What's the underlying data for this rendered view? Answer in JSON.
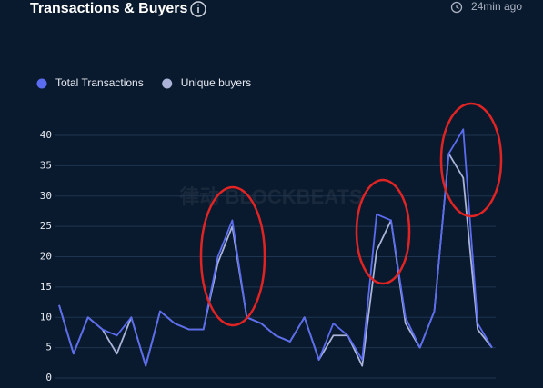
{
  "title": "Transactions & Buyers",
  "updated": "24min ago",
  "watermark": "律动 BLOCKBEATS",
  "chart_data": {
    "type": "line",
    "categories": [
      null,
      null,
      null,
      null,
      null,
      null,
      null,
      null,
      null,
      null,
      null,
      null,
      null,
      null,
      null,
      null,
      null,
      null,
      null,
      null,
      null,
      null,
      null,
      null,
      null,
      null,
      null,
      null,
      null,
      null,
      null
    ],
    "series": [
      {
        "name": "Total Transactions",
        "color": "#5b6cf0",
        "values": [
          12,
          4,
          10,
          8,
          7,
          10,
          2,
          11,
          9,
          8,
          8,
          20,
          26,
          10,
          9,
          7,
          6,
          10,
          3,
          9,
          7,
          3,
          27,
          26,
          10,
          5,
          11,
          37,
          41,
          9,
          5
        ]
      },
      {
        "name": "Unique buyers",
        "color": "#a9b4d8",
        "values": [
          12,
          4,
          10,
          8,
          4,
          10,
          2,
          11,
          9,
          8,
          8,
          19,
          25,
          10,
          9,
          7,
          6,
          10,
          3,
          7,
          7,
          2,
          21,
          26,
          9,
          5,
          11,
          37,
          33,
          8,
          5
        ]
      }
    ],
    "ylim": [
      0,
      40
    ],
    "yticks": [
      0,
      5,
      10,
      15,
      20,
      25,
      30,
      35,
      40
    ],
    "grid": true
  }
}
